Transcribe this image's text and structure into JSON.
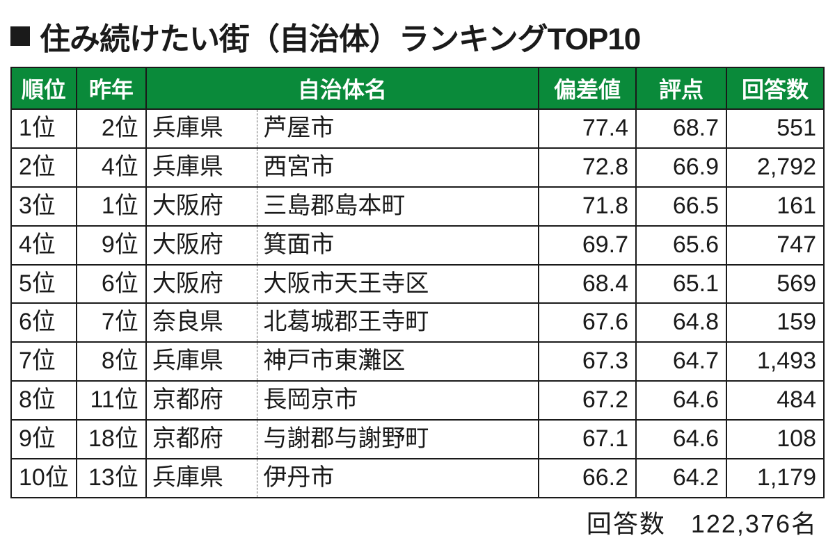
{
  "title": "住み続けたい街（自治体）ランキングTOP10",
  "table": {
    "type": "table",
    "header_bg": "#0a8a3a",
    "header_fg": "#ffffff",
    "border_color": "#1a1a1a",
    "columns": {
      "rank": "順位",
      "lastyear": "昨年",
      "name": "自治体名",
      "deviation": "偏差値",
      "score": "評点",
      "count": "回答数"
    },
    "rows": [
      {
        "rank": "1位",
        "lastyear": "2位",
        "pref": "兵庫県",
        "city": "芦屋市",
        "deviation": "77.4",
        "score": "68.7",
        "count": "551"
      },
      {
        "rank": "2位",
        "lastyear": "4位",
        "pref": "兵庫県",
        "city": "西宮市",
        "deviation": "72.8",
        "score": "66.9",
        "count": "2,792"
      },
      {
        "rank": "3位",
        "lastyear": "1位",
        "pref": "大阪府",
        "city": "三島郡島本町",
        "deviation": "71.8",
        "score": "66.5",
        "count": "161"
      },
      {
        "rank": "4位",
        "lastyear": "9位",
        "pref": "大阪府",
        "city": "箕面市",
        "deviation": "69.7",
        "score": "65.6",
        "count": "747"
      },
      {
        "rank": "5位",
        "lastyear": "6位",
        "pref": "大阪府",
        "city": "大阪市天王寺区",
        "deviation": "68.4",
        "score": "65.1",
        "count": "569"
      },
      {
        "rank": "6位",
        "lastyear": "7位",
        "pref": "奈良県",
        "city": "北葛城郡王寺町",
        "deviation": "67.6",
        "score": "64.8",
        "count": "159"
      },
      {
        "rank": "7位",
        "lastyear": "8位",
        "pref": "兵庫県",
        "city": "神戸市東灘区",
        "deviation": "67.3",
        "score": "64.7",
        "count": "1,493"
      },
      {
        "rank": "8位",
        "lastyear": "11位",
        "pref": "京都府",
        "city": "長岡京市",
        "deviation": "67.2",
        "score": "64.6",
        "count": "484"
      },
      {
        "rank": "9位",
        "lastyear": "18位",
        "pref": "京都府",
        "city": "与謝郡与謝野町",
        "deviation": "67.1",
        "score": "64.6",
        "count": "108"
      },
      {
        "rank": "10位",
        "lastyear": "13位",
        "pref": "兵庫県",
        "city": "伊丹市",
        "deviation": "66.2",
        "score": "64.2",
        "count": "1,179"
      }
    ]
  },
  "footer": {
    "label": "回答数",
    "value": "122,376名"
  }
}
